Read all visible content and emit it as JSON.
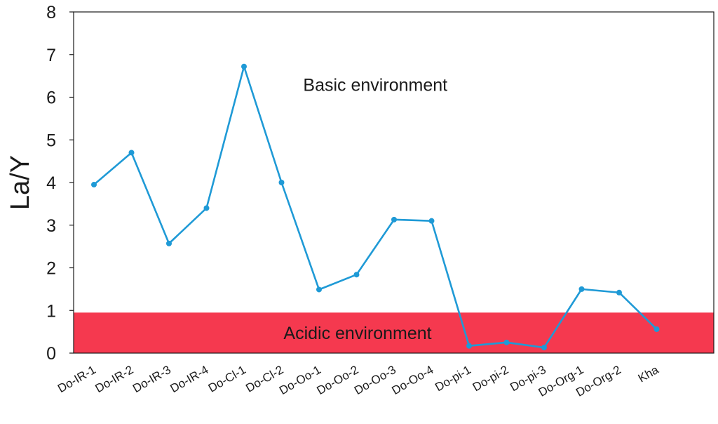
{
  "chart_data": {
    "type": "line",
    "ylabel": "La/Y",
    "xlabel": "",
    "ylim": [
      0,
      8
    ],
    "yticks": [
      0,
      1,
      2,
      3,
      4,
      5,
      6,
      7,
      8
    ],
    "categories": [
      "Do-IR-1",
      "Do-IR-2",
      "Do-IR-3",
      "Do-IR-4",
      "Do-Cl-1",
      "Do-Cl-2",
      "Do-Oo-1",
      "Do-Oo-2",
      "Do-Oo-3",
      "Do-Oo-4",
      "Do-pi-1",
      "Do-pi-2",
      "Do-pi-3",
      "Do-Org-1",
      "Do-Org-2",
      "Kha"
    ],
    "series": [
      {
        "values": [
          3.95,
          4.7,
          2.57,
          3.4,
          6.72,
          4.0,
          1.49,
          1.84,
          3.13,
          3.1,
          0.17,
          0.25,
          0.13,
          1.5,
          1.42,
          0.56
        ],
        "color": "#1f9ad6"
      }
    ],
    "band": {
      "from": 0,
      "to": 0.95,
      "label": "Acidic environment",
      "color": "#f5394f"
    },
    "annotations": [
      {
        "text": "Basic environment",
        "x": 7.5,
        "y": 6.3
      }
    ],
    "grid": false,
    "legend": "none"
  }
}
